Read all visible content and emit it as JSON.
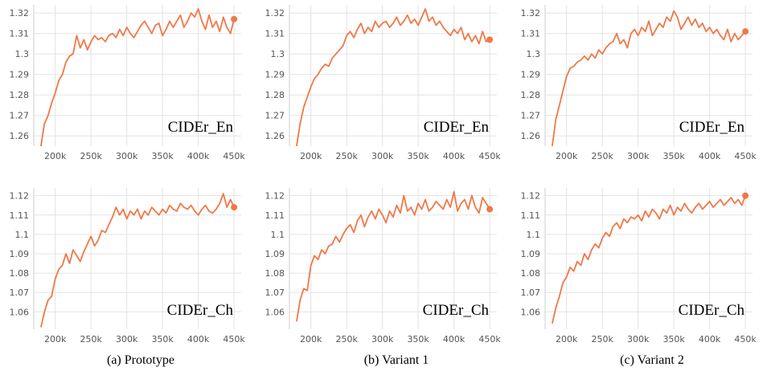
{
  "colors": {
    "line": "#f07848",
    "grid": "#e3e3e3",
    "tick": "#555555"
  },
  "captions": [
    "(a) Prototype",
    "(b) Variant 1",
    "(c) Variant 2"
  ],
  "chart_data": [
    {
      "type": "line",
      "title": "",
      "metric_label": "CIDEr_En",
      "x_ticks": [
        "200k",
        "250k",
        "300k",
        "350k",
        "400k",
        "450k"
      ],
      "xlim": [
        170000,
        460000
      ],
      "y_ticks": [
        "1.26",
        "1.27",
        "1.28",
        "1.29",
        "1.3",
        "1.31",
        "1.32"
      ],
      "ylim": [
        1.255,
        1.324
      ],
      "series": [
        {
          "x": [
            180000,
            185000,
            190000,
            195000,
            200000,
            205000,
            210000,
            215000,
            220000,
            225000,
            230000,
            235000,
            240000,
            245000,
            250000,
            255000,
            260000,
            265000,
            270000,
            275000,
            280000,
            285000,
            290000,
            295000,
            300000,
            305000,
            310000,
            315000,
            320000,
            325000,
            330000,
            335000,
            340000,
            345000,
            350000,
            355000,
            360000,
            365000,
            370000,
            375000,
            380000,
            385000,
            390000,
            395000,
            400000,
            405000,
            410000,
            415000,
            420000,
            425000,
            430000,
            435000,
            440000,
            445000,
            450000
          ],
          "y": [
            1.255,
            1.266,
            1.27,
            1.276,
            1.281,
            1.287,
            1.29,
            1.296,
            1.299,
            1.3,
            1.309,
            1.303,
            1.307,
            1.302,
            1.306,
            1.309,
            1.307,
            1.308,
            1.306,
            1.309,
            1.31,
            1.308,
            1.312,
            1.309,
            1.313,
            1.31,
            1.308,
            1.311,
            1.314,
            1.316,
            1.313,
            1.31,
            1.314,
            1.315,
            1.309,
            1.312,
            1.316,
            1.313,
            1.316,
            1.319,
            1.313,
            1.316,
            1.32,
            1.318,
            1.322,
            1.316,
            1.312,
            1.319,
            1.313,
            1.316,
            1.311,
            1.318,
            1.313,
            1.31,
            1.317
          ]
        }
      ]
    },
    {
      "type": "line",
      "title": "",
      "metric_label": "CIDEr_En",
      "x_ticks": [
        "200k",
        "250k",
        "300k",
        "350k",
        "400k",
        "450k"
      ],
      "xlim": [
        170000,
        460000
      ],
      "y_ticks": [
        "1.26",
        "1.27",
        "1.28",
        "1.29",
        "1.3",
        "1.31",
        "1.32"
      ],
      "ylim": [
        1.255,
        1.324
      ],
      "series": [
        {
          "x": [
            180000,
            185000,
            190000,
            195000,
            200000,
            205000,
            210000,
            215000,
            220000,
            225000,
            230000,
            235000,
            240000,
            245000,
            250000,
            255000,
            260000,
            265000,
            270000,
            275000,
            280000,
            285000,
            290000,
            295000,
            300000,
            305000,
            310000,
            315000,
            320000,
            325000,
            330000,
            335000,
            340000,
            345000,
            350000,
            355000,
            360000,
            365000,
            370000,
            375000,
            380000,
            385000,
            390000,
            395000,
            400000,
            405000,
            410000,
            415000,
            420000,
            425000,
            430000,
            435000,
            440000,
            445000,
            450000
          ],
          "y": [
            1.255,
            1.266,
            1.274,
            1.279,
            1.284,
            1.288,
            1.29,
            1.293,
            1.295,
            1.294,
            1.298,
            1.3,
            1.302,
            1.304,
            1.309,
            1.311,
            1.308,
            1.312,
            1.315,
            1.31,
            1.313,
            1.311,
            1.316,
            1.313,
            1.315,
            1.316,
            1.313,
            1.315,
            1.318,
            1.314,
            1.316,
            1.319,
            1.315,
            1.317,
            1.314,
            1.318,
            1.322,
            1.316,
            1.318,
            1.314,
            1.316,
            1.313,
            1.311,
            1.309,
            1.312,
            1.31,
            1.313,
            1.307,
            1.31,
            1.306,
            1.309,
            1.305,
            1.311,
            1.306,
            1.307
          ]
        }
      ]
    },
    {
      "type": "line",
      "title": "",
      "metric_label": "CIDEr_En",
      "x_ticks": [
        "200k",
        "250k",
        "300k",
        "350k",
        "400k",
        "450k"
      ],
      "xlim": [
        170000,
        460000
      ],
      "y_ticks": [
        "1.26",
        "1.27",
        "1.28",
        "1.29",
        "1.3",
        "1.31",
        "1.32"
      ],
      "ylim": [
        1.255,
        1.324
      ],
      "series": [
        {
          "x": [
            180000,
            185000,
            190000,
            195000,
            200000,
            205000,
            210000,
            215000,
            220000,
            225000,
            230000,
            235000,
            240000,
            245000,
            250000,
            255000,
            260000,
            265000,
            270000,
            275000,
            280000,
            285000,
            290000,
            295000,
            300000,
            305000,
            310000,
            315000,
            320000,
            325000,
            330000,
            335000,
            340000,
            345000,
            350000,
            355000,
            360000,
            365000,
            370000,
            375000,
            380000,
            385000,
            390000,
            395000,
            400000,
            405000,
            410000,
            415000,
            420000,
            425000,
            430000,
            435000,
            440000,
            445000,
            450000
          ],
          "y": [
            1.255,
            1.268,
            1.275,
            1.282,
            1.289,
            1.293,
            1.294,
            1.296,
            1.297,
            1.299,
            1.297,
            1.3,
            1.298,
            1.302,
            1.3,
            1.303,
            1.305,
            1.306,
            1.31,
            1.305,
            1.307,
            1.303,
            1.31,
            1.312,
            1.309,
            1.313,
            1.311,
            1.316,
            1.309,
            1.312,
            1.315,
            1.313,
            1.318,
            1.316,
            1.321,
            1.318,
            1.312,
            1.315,
            1.318,
            1.314,
            1.317,
            1.313,
            1.315,
            1.311,
            1.313,
            1.31,
            1.312,
            1.309,
            1.307,
            1.312,
            1.306,
            1.31,
            1.307,
            1.309,
            1.311
          ]
        }
      ]
    },
    {
      "type": "line",
      "title": "",
      "metric_label": "CIDEr_Ch",
      "x_ticks": [
        "200k",
        "250k",
        "300k",
        "350k",
        "400k",
        "450k"
      ],
      "xlim": [
        170000,
        460000
      ],
      "y_ticks": [
        "1.06",
        "1.07",
        "1.08",
        "1.09",
        "1.1",
        "1.11",
        "1.12"
      ],
      "ylim": [
        1.051,
        1.124
      ],
      "series": [
        {
          "x": [
            180000,
            185000,
            190000,
            195000,
            200000,
            205000,
            210000,
            215000,
            220000,
            225000,
            230000,
            235000,
            240000,
            245000,
            250000,
            255000,
            260000,
            265000,
            270000,
            275000,
            280000,
            285000,
            290000,
            295000,
            300000,
            305000,
            310000,
            315000,
            320000,
            325000,
            330000,
            335000,
            340000,
            345000,
            350000,
            355000,
            360000,
            365000,
            370000,
            375000,
            380000,
            385000,
            390000,
            395000,
            400000,
            405000,
            410000,
            415000,
            420000,
            425000,
            430000,
            435000,
            440000,
            445000,
            450000
          ],
          "y": [
            1.052,
            1.06,
            1.066,
            1.068,
            1.077,
            1.082,
            1.084,
            1.09,
            1.085,
            1.092,
            1.089,
            1.086,
            1.091,
            1.095,
            1.099,
            1.094,
            1.097,
            1.102,
            1.101,
            1.105,
            1.109,
            1.114,
            1.11,
            1.113,
            1.108,
            1.112,
            1.11,
            1.113,
            1.108,
            1.112,
            1.11,
            1.114,
            1.112,
            1.11,
            1.113,
            1.111,
            1.115,
            1.113,
            1.112,
            1.116,
            1.114,
            1.113,
            1.115,
            1.112,
            1.11,
            1.113,
            1.115,
            1.112,
            1.111,
            1.113,
            1.116,
            1.121,
            1.114,
            1.118,
            1.114
          ]
        }
      ]
    },
    {
      "type": "line",
      "title": "",
      "metric_label": "CIDEr_Ch",
      "x_ticks": [
        "200k",
        "250k",
        "300k",
        "350k",
        "400k",
        "450k"
      ],
      "xlim": [
        170000,
        460000
      ],
      "y_ticks": [
        "1.06",
        "1.07",
        "1.08",
        "1.09",
        "1.1",
        "1.11",
        "1.12"
      ],
      "ylim": [
        1.051,
        1.124
      ],
      "series": [
        {
          "x": [
            180000,
            185000,
            190000,
            195000,
            200000,
            205000,
            210000,
            215000,
            220000,
            225000,
            230000,
            235000,
            240000,
            245000,
            250000,
            255000,
            260000,
            265000,
            270000,
            275000,
            280000,
            285000,
            290000,
            295000,
            300000,
            305000,
            310000,
            315000,
            320000,
            325000,
            330000,
            335000,
            340000,
            345000,
            350000,
            355000,
            360000,
            365000,
            370000,
            375000,
            380000,
            385000,
            390000,
            395000,
            400000,
            405000,
            410000,
            415000,
            420000,
            425000,
            430000,
            435000,
            440000,
            445000,
            450000
          ],
          "y": [
            1.055,
            1.066,
            1.072,
            1.071,
            1.084,
            1.089,
            1.087,
            1.092,
            1.09,
            1.094,
            1.095,
            1.099,
            1.096,
            1.1,
            1.103,
            1.105,
            1.101,
            1.107,
            1.11,
            1.104,
            1.109,
            1.112,
            1.108,
            1.113,
            1.11,
            1.106,
            1.112,
            1.109,
            1.115,
            1.111,
            1.12,
            1.112,
            1.114,
            1.11,
            1.116,
            1.113,
            1.118,
            1.112,
            1.114,
            1.117,
            1.115,
            1.113,
            1.118,
            1.114,
            1.122,
            1.112,
            1.116,
            1.118,
            1.113,
            1.12,
            1.114,
            1.111,
            1.119,
            1.116,
            1.113
          ]
        }
      ]
    },
    {
      "type": "line",
      "title": "",
      "metric_label": "CIDEr_Ch",
      "x_ticks": [
        "200k",
        "250k",
        "300k",
        "350k",
        "400k",
        "450k"
      ],
      "xlim": [
        170000,
        460000
      ],
      "y_ticks": [
        "1.06",
        "1.07",
        "1.08",
        "1.09",
        "1.1",
        "1.11",
        "1.12"
      ],
      "ylim": [
        1.051,
        1.124
      ],
      "series": [
        {
          "x": [
            180000,
            185000,
            190000,
            195000,
            200000,
            205000,
            210000,
            215000,
            220000,
            225000,
            230000,
            235000,
            240000,
            245000,
            250000,
            255000,
            260000,
            265000,
            270000,
            275000,
            280000,
            285000,
            290000,
            295000,
            300000,
            305000,
            310000,
            315000,
            320000,
            325000,
            330000,
            335000,
            340000,
            345000,
            350000,
            355000,
            360000,
            365000,
            370000,
            375000,
            380000,
            385000,
            390000,
            395000,
            400000,
            405000,
            410000,
            415000,
            420000,
            425000,
            430000,
            435000,
            440000,
            445000,
            450000
          ],
          "y": [
            1.054,
            1.062,
            1.068,
            1.075,
            1.078,
            1.083,
            1.081,
            1.086,
            1.084,
            1.09,
            1.087,
            1.092,
            1.095,
            1.093,
            1.098,
            1.101,
            1.099,
            1.104,
            1.106,
            1.103,
            1.108,
            1.106,
            1.109,
            1.108,
            1.11,
            1.107,
            1.112,
            1.109,
            1.113,
            1.111,
            1.108,
            1.113,
            1.111,
            1.115,
            1.11,
            1.114,
            1.112,
            1.116,
            1.113,
            1.111,
            1.114,
            1.116,
            1.113,
            1.115,
            1.117,
            1.114,
            1.116,
            1.118,
            1.115,
            1.117,
            1.119,
            1.116,
            1.118,
            1.115,
            1.12
          ]
        }
      ]
    }
  ]
}
